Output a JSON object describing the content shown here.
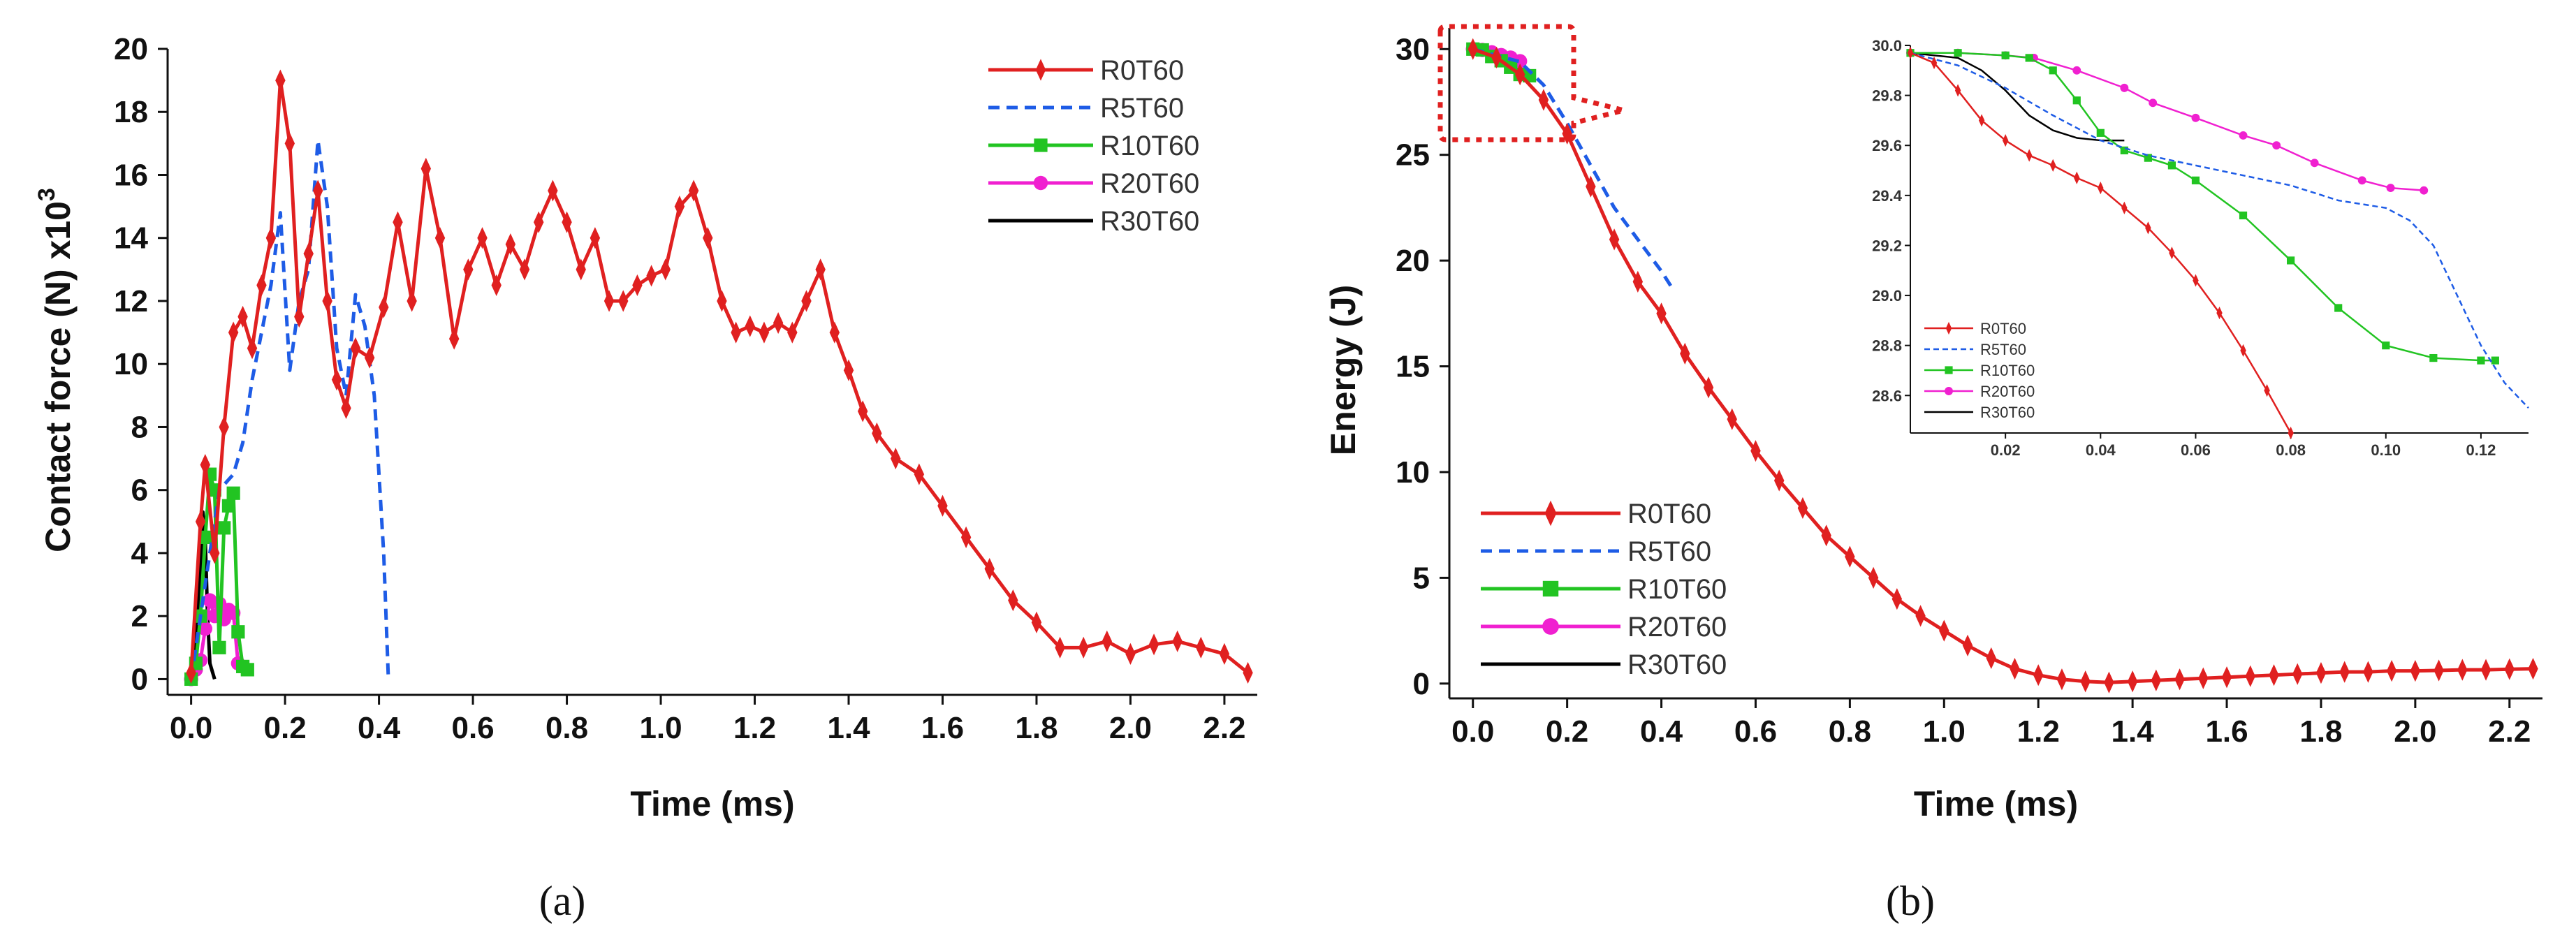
{
  "figure": {
    "labels": [
      "(a)",
      "(b)"
    ]
  },
  "series_style": [
    {
      "name": "R0T60",
      "color": "#e02020",
      "dash": "",
      "marker": "diamond"
    },
    {
      "name": "R5T60",
      "color": "#1e5ce6",
      "dash": "16,10",
      "marker": "none"
    },
    {
      "name": "R10T60",
      "color": "#22c422",
      "dash": "",
      "marker": "square"
    },
    {
      "name": "R20T60",
      "color": "#f020d0",
      "dash": "",
      "marker": "circle"
    },
    {
      "name": "R30T60",
      "color": "#000000",
      "dash": "",
      "marker": "none"
    }
  ],
  "chart_data": [
    {
      "type": "line",
      "panel": "(a)",
      "title": "",
      "xlabel": "Time (ms)",
      "ylabel": "Contact force (N) x10",
      "ylabel_sup": "3",
      "xlim": [
        -0.05,
        2.27
      ],
      "ylim": [
        -0.5,
        20
      ],
      "xticks": [
        0.0,
        0.2,
        0.4,
        0.6,
        0.8,
        1.0,
        1.2,
        1.4,
        1.6,
        1.8,
        2.0,
        2.2
      ],
      "xtick_labels": [
        "0.0",
        "0.2",
        "0.4",
        "0.6",
        "0.8",
        "1.0",
        "1.2",
        "1.4",
        "1.6",
        "1.8",
        "2.0",
        "2.2"
      ],
      "yticks": [
        0,
        2,
        4,
        6,
        8,
        10,
        12,
        14,
        16,
        18,
        20
      ],
      "ytick_labels": [
        "0",
        "2",
        "4",
        "6",
        "8",
        "10",
        "12",
        "14",
        "16",
        "18",
        "20"
      ],
      "legend": [
        "R0T60",
        "R5T60",
        "R10T60",
        "R20T60",
        "R30T60"
      ],
      "series": [
        {
          "name": "R0T60",
          "x": [
            0.0,
            0.02,
            0.03,
            0.05,
            0.07,
            0.09,
            0.11,
            0.13,
            0.15,
            0.17,
            0.19,
            0.21,
            0.23,
            0.25,
            0.27,
            0.29,
            0.31,
            0.33,
            0.35,
            0.38,
            0.41,
            0.44,
            0.47,
            0.5,
            0.53,
            0.56,
            0.59,
            0.62,
            0.65,
            0.68,
            0.71,
            0.74,
            0.77,
            0.8,
            0.83,
            0.86,
            0.89,
            0.92,
            0.95,
            0.98,
            1.01,
            1.04,
            1.07,
            1.1,
            1.13,
            1.16,
            1.19,
            1.22,
            1.25,
            1.28,
            1.31,
            1.34,
            1.37,
            1.4,
            1.43,
            1.46,
            1.5,
            1.55,
            1.6,
            1.65,
            1.7,
            1.75,
            1.8,
            1.85,
            1.9,
            1.95,
            2.0,
            2.05,
            2.1,
            2.15,
            2.2,
            2.25
          ],
          "y": [
            0.2,
            5.0,
            6.8,
            4.0,
            8.0,
            11.0,
            11.5,
            10.5,
            12.5,
            14.0,
            19.0,
            17.0,
            11.5,
            13.5,
            15.5,
            12.0,
            9.5,
            8.6,
            10.5,
            10.2,
            11.8,
            14.5,
            12.0,
            16.2,
            14.0,
            10.8,
            13.0,
            14.0,
            12.5,
            13.8,
            13.0,
            14.5,
            15.5,
            14.5,
            13.0,
            14.0,
            12.0,
            12.0,
            12.5,
            12.8,
            13.0,
            15.0,
            15.5,
            14.0,
            12.0,
            11.0,
            11.2,
            11.0,
            11.3,
            11.0,
            12.0,
            13.0,
            11.0,
            9.8,
            8.5,
            7.8,
            7.0,
            6.5,
            5.5,
            4.5,
            3.5,
            2.5,
            1.8,
            1.0,
            1.0,
            1.2,
            0.8,
            1.1,
            1.2,
            1.0,
            0.8,
            0.2
          ]
        },
        {
          "name": "R5T60",
          "x": [
            0.0,
            0.03,
            0.06,
            0.09,
            0.11,
            0.13,
            0.15,
            0.17,
            0.19,
            0.21,
            0.23,
            0.25,
            0.27,
            0.29,
            0.31,
            0.33,
            0.35,
            0.37,
            0.39,
            0.41,
            0.42
          ],
          "y": [
            0.0,
            3.0,
            6.0,
            6.5,
            7.5,
            9.5,
            11.0,
            12.5,
            14.8,
            9.8,
            12.0,
            13.0,
            17.1,
            15.0,
            10.5,
            9.0,
            12.2,
            11.2,
            9.0,
            4.0,
            0.0
          ]
        },
        {
          "name": "R10T60",
          "x": [
            0.0,
            0.01,
            0.02,
            0.03,
            0.04,
            0.05,
            0.06,
            0.07,
            0.08,
            0.09,
            0.1,
            0.11,
            0.12
          ],
          "y": [
            0.0,
            0.5,
            2.0,
            4.5,
            6.5,
            6.0,
            1.0,
            4.8,
            5.5,
            5.9,
            1.5,
            0.4,
            0.3
          ]
        },
        {
          "name": "R20T60",
          "x": [
            0.0,
            0.01,
            0.02,
            0.03,
            0.04,
            0.05,
            0.06,
            0.07,
            0.08,
            0.09,
            0.1
          ],
          "y": [
            0.0,
            0.3,
            0.6,
            1.6,
            2.5,
            2.0,
            2.4,
            1.9,
            2.2,
            2.1,
            0.5
          ]
        },
        {
          "name": "R30T60",
          "x": [
            0.0,
            0.01,
            0.02,
            0.025,
            0.03,
            0.035,
            0.04,
            0.05
          ],
          "y": [
            0.0,
            1.0,
            3.5,
            5.3,
            4.5,
            2.0,
            0.5,
            0.0
          ]
        }
      ]
    },
    {
      "type": "line",
      "panel": "(b)",
      "title": "",
      "xlabel": "Time (ms)",
      "ylabel": "Energy (J)",
      "xlim": [
        -0.05,
        2.27
      ],
      "ylim": [
        -0.7,
        31
      ],
      "xticks": [
        0.0,
        0.2,
        0.4,
        0.6,
        0.8,
        1.0,
        1.2,
        1.4,
        1.6,
        1.8,
        2.0,
        2.2
      ],
      "xtick_labels": [
        "0.0",
        "0.2",
        "0.4",
        "0.6",
        "0.8",
        "1.0",
        "1.2",
        "1.4",
        "1.6",
        "1.8",
        "2.0",
        "2.2"
      ],
      "yticks": [
        0,
        5,
        10,
        15,
        20,
        25,
        30
      ],
      "ytick_labels": [
        "0",
        "5",
        "10",
        "15",
        "20",
        "25",
        "30"
      ],
      "legend": [
        "R0T60",
        "R5T60",
        "R10T60",
        "R20T60",
        "R30T60"
      ],
      "series": [
        {
          "name": "R0T60",
          "x": [
            0.0,
            0.05,
            0.1,
            0.15,
            0.2,
            0.25,
            0.3,
            0.35,
            0.4,
            0.45,
            0.5,
            0.55,
            0.6,
            0.65,
            0.7,
            0.75,
            0.8,
            0.85,
            0.9,
            0.95,
            1.0,
            1.05,
            1.1,
            1.15,
            1.2,
            1.25,
            1.3,
            1.35,
            1.4,
            1.45,
            1.5,
            1.55,
            1.6,
            1.65,
            1.7,
            1.75,
            1.8,
            1.85,
            1.9,
            1.95,
            2.0,
            2.05,
            2.1,
            2.15,
            2.2,
            2.25
          ],
          "y": [
            30.0,
            29.6,
            28.8,
            27.6,
            26.0,
            23.5,
            21.0,
            19.0,
            17.5,
            15.6,
            14.0,
            12.5,
            11.0,
            9.6,
            8.3,
            7.0,
            6.0,
            5.0,
            4.0,
            3.2,
            2.5,
            1.8,
            1.2,
            0.7,
            0.4,
            0.2,
            0.1,
            0.05,
            0.1,
            0.15,
            0.2,
            0.25,
            0.3,
            0.35,
            0.4,
            0.45,
            0.5,
            0.55,
            0.55,
            0.6,
            0.6,
            0.62,
            0.65,
            0.65,
            0.68,
            0.7
          ]
        },
        {
          "name": "R5T60",
          "x": [
            0.0,
            0.05,
            0.1,
            0.15,
            0.2,
            0.25,
            0.3,
            0.35,
            0.4,
            0.42
          ],
          "y": [
            30.0,
            29.7,
            29.4,
            28.3,
            26.5,
            24.5,
            22.5,
            21.0,
            19.5,
            18.8
          ]
        },
        {
          "name": "R10T60",
          "x": [
            0.0,
            0.02,
            0.04,
            0.06,
            0.08,
            0.1,
            0.12
          ],
          "y": [
            30.0,
            29.96,
            29.65,
            29.45,
            29.14,
            28.8,
            28.74
          ]
        },
        {
          "name": "R20T60",
          "x": [
            0.0,
            0.02,
            0.04,
            0.06,
            0.08,
            0.1
          ],
          "y": [
            30.0,
            29.96,
            29.85,
            29.72,
            29.6,
            29.43
          ]
        },
        {
          "name": "R30T60",
          "x": [
            0.0,
            0.02,
            0.04,
            0.05
          ],
          "y": [
            30.0,
            29.9,
            29.65,
            29.62
          ]
        }
      ],
      "inset": {
        "xlim": [
          0.0,
          0.13
        ],
        "ylim": [
          28.45,
          30.0
        ],
        "xticks": [
          0.02,
          0.04,
          0.06,
          0.08,
          0.1,
          0.12
        ],
        "xtick_labels": [
          "0.02",
          "0.04",
          "0.06",
          "0.08",
          "0.10",
          "0.12"
        ],
        "yticks": [
          28.6,
          28.8,
          29.0,
          29.2,
          29.4,
          29.6,
          29.8,
          30.0
        ],
        "ytick_labels": [
          "28.6",
          "28.8",
          "29.0",
          "29.2",
          "29.4",
          "29.6",
          "29.8",
          "30.0"
        ],
        "legend": [
          "R0T60",
          "R5T60",
          "R10T60",
          "R20T60",
          "R30T60"
        ],
        "series": [
          {
            "name": "R0T60",
            "x": [
              0.0,
              0.005,
              0.01,
              0.015,
              0.02,
              0.025,
              0.03,
              0.035,
              0.04,
              0.045,
              0.05,
              0.055,
              0.06,
              0.065,
              0.07,
              0.075,
              0.08
            ],
            "y": [
              29.97,
              29.93,
              29.82,
              29.7,
              29.62,
              29.56,
              29.52,
              29.47,
              29.43,
              29.35,
              29.27,
              29.17,
              29.06,
              28.93,
              28.78,
              28.62,
              28.45
            ]
          },
          {
            "name": "R5T60",
            "x": [
              0.0,
              0.01,
              0.02,
              0.03,
              0.04,
              0.05,
              0.06,
              0.07,
              0.08,
              0.09,
              0.1,
              0.105,
              0.11,
              0.115,
              0.12,
              0.125,
              0.13
            ],
            "y": [
              29.97,
              29.92,
              29.83,
              29.72,
              29.62,
              29.56,
              29.52,
              29.48,
              29.44,
              29.38,
              29.35,
              29.3,
              29.2,
              29.0,
              28.8,
              28.65,
              28.55
            ]
          },
          {
            "name": "R10T60",
            "x": [
              0.0,
              0.01,
              0.02,
              0.025,
              0.03,
              0.035,
              0.04,
              0.045,
              0.05,
              0.055,
              0.06,
              0.07,
              0.08,
              0.09,
              0.1,
              0.11,
              0.12,
              0.123
            ],
            "y": [
              29.97,
              29.97,
              29.96,
              29.95,
              29.9,
              29.78,
              29.65,
              29.58,
              29.55,
              29.52,
              29.46,
              29.32,
              29.14,
              28.95,
              28.8,
              28.75,
              28.74,
              28.74
            ]
          },
          {
            "name": "R20T60",
            "x": [
              0.0,
              0.01,
              0.02,
              0.026,
              0.035,
              0.045,
              0.051,
              0.06,
              0.07,
              0.077,
              0.085,
              0.095,
              0.101,
              0.108
            ],
            "y": [
              29.97,
              29.97,
              29.96,
              29.95,
              29.9,
              29.83,
              29.77,
              29.71,
              29.64,
              29.6,
              29.53,
              29.46,
              29.43,
              29.42
            ]
          },
          {
            "name": "R30T60",
            "x": [
              0.0,
              0.01,
              0.015,
              0.02,
              0.025,
              0.03,
              0.035,
              0.04,
              0.045
            ],
            "y": [
              29.97,
              29.95,
              29.9,
              29.82,
              29.72,
              29.66,
              29.63,
              29.62,
              29.62
            ]
          }
        ]
      }
    }
  ]
}
